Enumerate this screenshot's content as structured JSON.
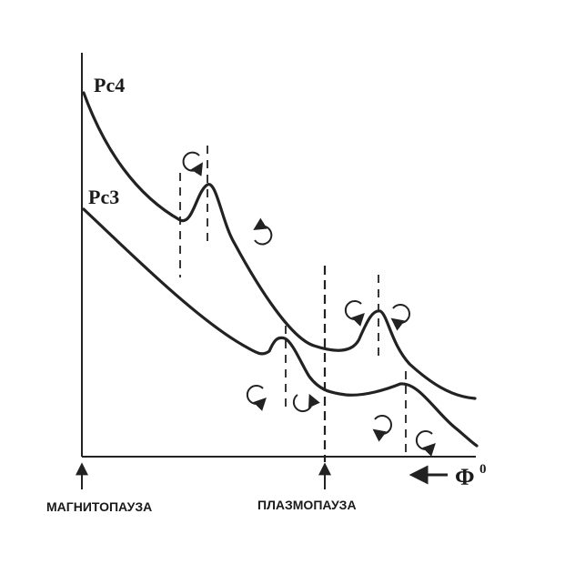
{
  "curves": {
    "upper_label": "Pc4",
    "lower_label": "Pc3"
  },
  "axis": {
    "x_label_main": "Φ",
    "x_label_sup": "0",
    "left_marker_label": "МАГНИТОПАУЗА",
    "right_marker_label": "ПЛАЗМОПАУЗА"
  },
  "icons": {
    "rotation": "rotation-arrow-icon",
    "direction": "arrow-left-icon"
  }
}
